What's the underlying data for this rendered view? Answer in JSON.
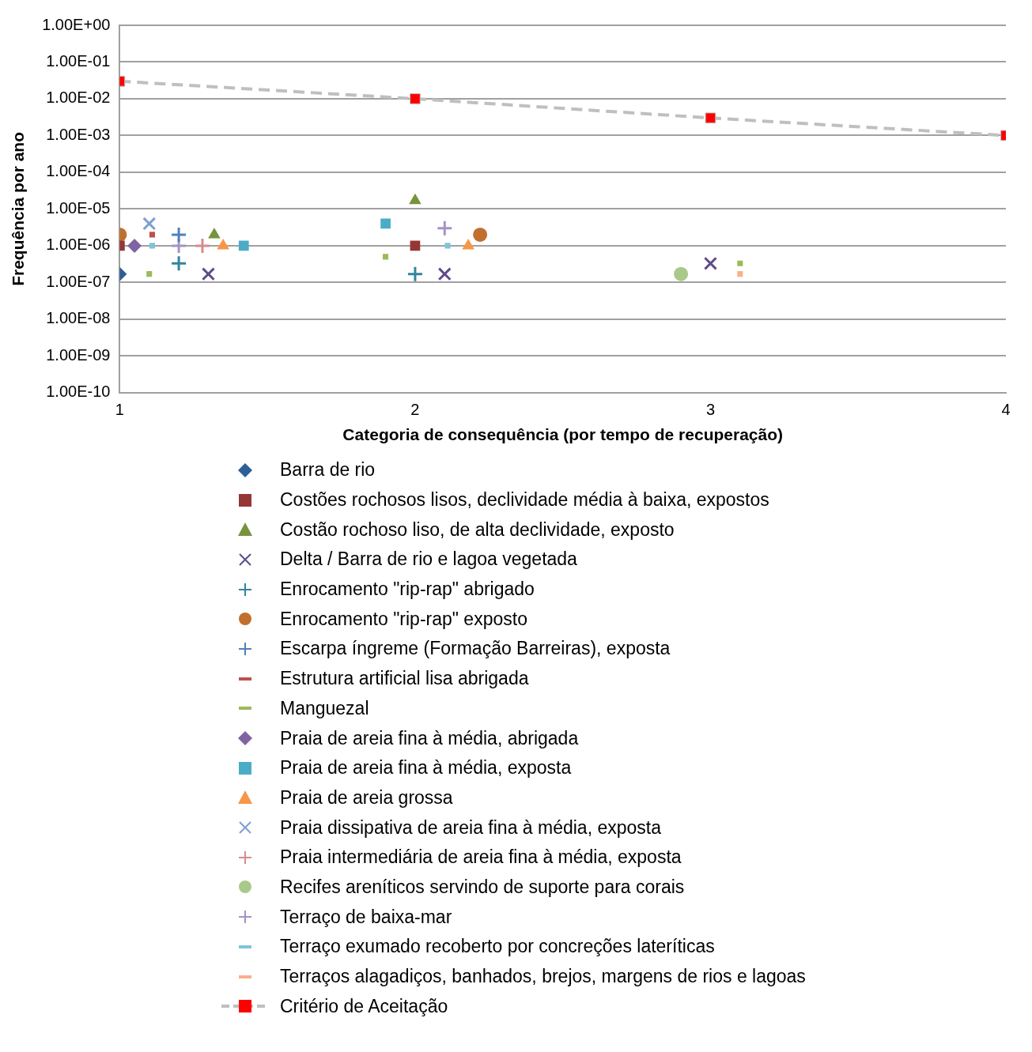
{
  "chart_data": {
    "type": "scatter",
    "xlabel": "Categoria de consequência (por tempo de recuperação)",
    "ylabel": "Frequência por ano",
    "log": "y",
    "grid": "y",
    "legend": "bottom",
    "xlim": [
      1,
      4
    ],
    "xticks": [
      1,
      2,
      3,
      4
    ],
    "ylim": [
      1e-10,
      1
    ],
    "yticks": [
      {
        "value": 1e-10,
        "label": "1.00E-10"
      },
      {
        "value": 1e-09,
        "label": "1.00E-09"
      },
      {
        "value": 1e-08,
        "label": "1.00E-08"
      },
      {
        "value": 1e-07,
        "label": "1.00E-07"
      },
      {
        "value": 1e-06,
        "label": "1.00E-06"
      },
      {
        "value": 1e-05,
        "label": "1.00E-05"
      },
      {
        "value": 0.0001,
        "label": "1.00E-04"
      },
      {
        "value": 0.001,
        "label": "1.00E-03"
      },
      {
        "value": 0.01,
        "label": "1.00E-02"
      },
      {
        "value": 0.1,
        "label": "1.00E-01"
      },
      {
        "value": 1,
        "label": "1.00E+00"
      }
    ],
    "series": [
      {
        "name": "Barra de rio",
        "color": "#2e5e96",
        "marker": "diamond",
        "x": [
          1
        ],
        "values": [
          1.7e-07
        ]
      },
      {
        "name": "Costões rochosos lisos, declividade média à baixa, expostos",
        "color": "#953735",
        "marker": "square",
        "x": [
          1,
          2
        ],
        "values": [
          1e-06,
          1e-06
        ]
      },
      {
        "name": "Costão rochoso liso, de alta declividade, exposto",
        "color": "#77933c",
        "marker": "triangle",
        "x": [
          1.32,
          2
        ],
        "values": [
          2e-06,
          1.7e-05
        ]
      },
      {
        "name": "Delta / Barra de rio e lagoa vegetada",
        "color": "#5f4b8b",
        "marker": "x",
        "x": [
          1.3,
          2.1,
          3
        ],
        "values": [
          1.7e-07,
          1.7e-07,
          3.3e-07
        ]
      },
      {
        "name": "Enrocamento \"rip-rap\" abrigado",
        "color": "#31859c",
        "marker": "cross",
        "x": [
          1.2,
          2
        ],
        "values": [
          3.3e-07,
          1.7e-07
        ]
      },
      {
        "name": "Enrocamento \"rip-rap\" exposto",
        "color": "#c0702c",
        "marker": "circle",
        "x": [
          1,
          2.22
        ],
        "values": [
          2e-06,
          2e-06
        ]
      },
      {
        "name": "Escarpa íngreme (Formação Barreiras), exposta",
        "color": "#4f81bd",
        "marker": "cross",
        "x": [
          1.2
        ],
        "values": [
          2e-06
        ]
      },
      {
        "name": "Estrutura artificial lisa abrigada",
        "color": "#c0504d",
        "x": [
          1.11
        ],
        "values": [
          2e-06
        ]
      },
      {
        "name": "Manguezal",
        "color": "#9bbb59",
        "x": [
          1.1,
          1.9,
          3.1
        ],
        "values": [
          1.7e-07,
          5e-07,
          3.3e-07
        ]
      },
      {
        "name": "Praia de areia fina à média, abrigada",
        "color": "#8064a2",
        "marker": "diamond",
        "x": [
          1.05
        ],
        "values": [
          1e-06
        ]
      },
      {
        "name": "Praia de areia fina à média, exposta",
        "color": "#4bacc6",
        "marker": "square",
        "x": [
          1.42,
          1.9
        ],
        "values": [
          1e-06,
          4e-06
        ]
      },
      {
        "name": "Praia de areia grossa",
        "color": "#f79646",
        "marker": "triangle",
        "x": [
          1.35,
          2.18
        ],
        "values": [
          1e-06,
          1e-06
        ]
      },
      {
        "name": "Praia dissipativa de areia fina à média, exposta",
        "color": "#7f9fd0",
        "marker": "x",
        "x": [
          1.1
        ],
        "values": [
          4e-06
        ]
      },
      {
        "name": "Praia intermediária de areia fina à média, exposta",
        "color": "#d98b8a",
        "marker": "cross",
        "x": [
          1.28
        ],
        "values": [
          1e-06
        ]
      },
      {
        "name": "Recifes areníticos servindo de suporte para corais",
        "color": "#a9c98a",
        "marker": "circle",
        "x": [
          2.9
        ],
        "values": [
          1.7e-07
        ]
      },
      {
        "name": "Terraço de baixa-mar",
        "color": "#a593c4",
        "marker": "cross",
        "x": [
          1.2,
          2.1
        ],
        "values": [
          1e-06,
          3e-06
        ]
      },
      {
        "name": "Terraço exumado recoberto por concreções lateríticas",
        "color": "#7ec4d9",
        "x": [
          1.11,
          2.11
        ],
        "values": [
          1e-06,
          1e-06
        ]
      },
      {
        "name": "Terraços alagadiços, banhados, brejos, margens de rios e lagoas",
        "color": "#fab08a",
        "x": [
          3.1
        ],
        "values": [
          1.7e-07
        ]
      },
      {
        "name": "Critério de Aceitação",
        "type": "line",
        "line_style": "dashed",
        "color": "#bfbfbf",
        "colors": [
          "#ff0000",
          "#ff0000",
          "#ff0000",
          "#ff0000"
        ],
        "marker": "square",
        "x": [
          1,
          2,
          3,
          4
        ],
        "values": [
          0.03,
          0.01,
          0.003,
          0.001
        ]
      }
    ]
  }
}
